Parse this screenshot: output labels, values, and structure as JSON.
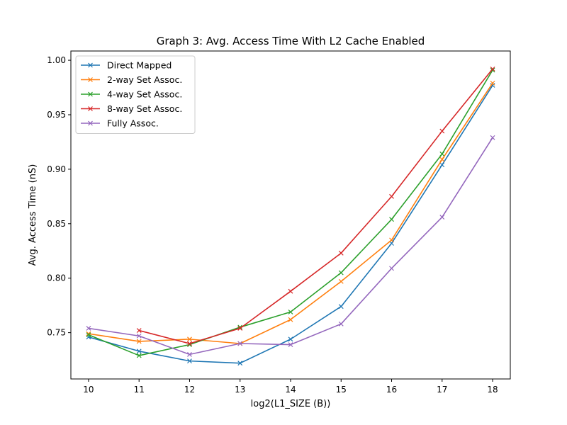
{
  "chart_data": {
    "type": "line",
    "title": "Graph 3: Avg. Access Time With L2 Cache Enabled",
    "xlabel": "log2(L1_SIZE (B))",
    "ylabel": "Avg. Access Time (nS)",
    "x": [
      10,
      11,
      12,
      13,
      14,
      15,
      16,
      17,
      18
    ],
    "xlim": [
      9.65,
      18.35
    ],
    "ylim": [
      0.7075,
      1.0085
    ],
    "xticks": [
      "10",
      "11",
      "12",
      "13",
      "14",
      "15",
      "16",
      "17",
      "18"
    ],
    "yticks": [
      "0.75",
      "0.80",
      "0.85",
      "0.90",
      "0.95",
      "1.00"
    ],
    "yticks_values": [
      0.75,
      0.8,
      0.85,
      0.9,
      0.95,
      1.0
    ],
    "grid": false,
    "legend_position": "upper-left",
    "marker": "x",
    "series": [
      {
        "name": "Direct Mapped",
        "color": "#1f77b4",
        "x": [
          10,
          11,
          12,
          13,
          14,
          15,
          16,
          17,
          18
        ],
        "values": [
          0.746,
          0.733,
          0.724,
          0.722,
          0.744,
          0.774,
          0.832,
          0.904,
          0.977
        ]
      },
      {
        "name": "2-way Set Assoc.",
        "color": "#ff7f0e",
        "x": [
          10,
          11,
          12,
          13,
          14,
          15,
          16,
          17,
          18
        ],
        "values": [
          0.749,
          0.742,
          0.744,
          0.74,
          0.762,
          0.797,
          0.835,
          0.909,
          0.979
        ]
      },
      {
        "name": "4-way Set Assoc.",
        "color": "#2ca02c",
        "x": [
          10,
          11,
          12,
          13,
          14,
          15,
          16,
          17,
          18
        ],
        "values": [
          0.748,
          0.729,
          0.739,
          0.755,
          0.769,
          0.805,
          0.854,
          0.914,
          0.991
        ]
      },
      {
        "name": "8-way Set Assoc.",
        "color": "#d62728",
        "x": [
          11,
          12,
          13,
          14,
          15,
          16,
          17,
          18
        ],
        "values": [
          0.752,
          0.74,
          0.754,
          0.788,
          0.823,
          0.875,
          0.935,
          0.992
        ]
      },
      {
        "name": "Fully Assoc.",
        "color": "#9467bd",
        "x": [
          10,
          11,
          12,
          13,
          14,
          15,
          16,
          17,
          18
        ],
        "values": [
          0.754,
          0.747,
          0.73,
          0.74,
          0.739,
          0.758,
          0.809,
          0.856,
          0.929
        ]
      }
    ]
  }
}
